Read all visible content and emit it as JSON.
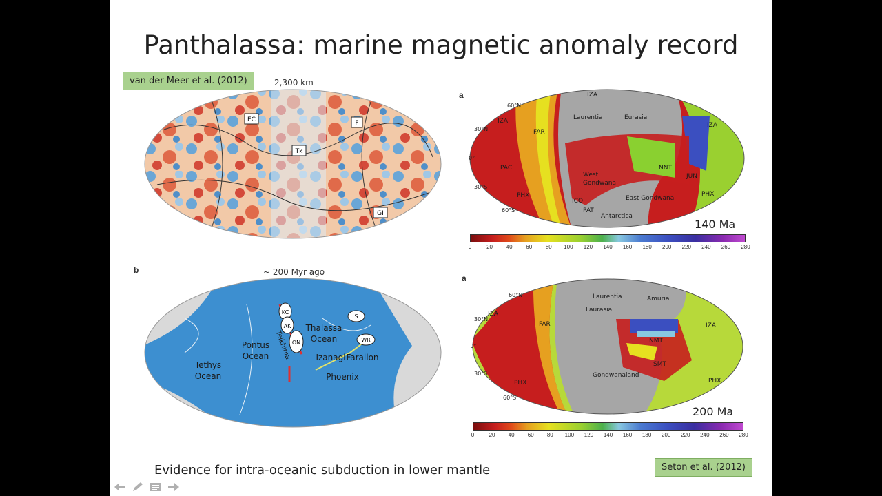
{
  "slide": {
    "title": "Panthalassa: marine magnetic anomaly record",
    "caption": "Evidence for intra-oceanic subduction in lower mantle",
    "citation_left": "van der Meer et al. (2012)",
    "citation_right": "Seton et al. (2012)"
  },
  "tomo_map": {
    "scale_label": "2,300 km",
    "boxes": [
      "EC",
      "F",
      "Tk",
      "GI"
    ]
  },
  "recon_map": {
    "panel_letter": "b",
    "time_label": "~ 200 Myr ago",
    "oceans": [
      "Tethys",
      "Ocean",
      "Pontus",
      "Ocean",
      "Thalassa",
      "Ocean",
      "Izanagi",
      "Farallon",
      "Phoenix",
      "Telkhinia"
    ],
    "ovals": [
      "KC",
      "AK",
      "ON",
      "S",
      "WR"
    ]
  },
  "age_map_140": {
    "panel_letter": "a",
    "age": "140 Ma",
    "lat_labels": [
      "60°N",
      "30°N",
      "0°",
      "30°S",
      "60°S"
    ],
    "plates": [
      "IZA",
      "FAR",
      "Laurentia",
      "Eurasia",
      "IZA",
      "PAC",
      "NNT",
      "West",
      "Gondwana",
      "JUN",
      "PHX",
      "East Gondwana",
      "PHX",
      "PAT",
      "Antarctica",
      "ICO",
      "IZA"
    ]
  },
  "age_map_200": {
    "panel_letter": "a",
    "age": "200 Ma",
    "lat_labels": [
      "60°N",
      "30°N",
      "0°",
      "30°S",
      "60°S"
    ],
    "plates": [
      "IZA",
      "FAR",
      "Laurentia",
      "Amuria",
      "Laurasia",
      "IZA",
      "NMT",
      "SMT",
      "Gondwanaland",
      "PHX",
      "PHX"
    ]
  },
  "scale": {
    "ticks": [
      "0",
      "20",
      "40",
      "60",
      "80",
      "100",
      "120",
      "140",
      "160",
      "180",
      "200",
      "220",
      "240",
      "260",
      "280"
    ]
  },
  "navigation": {
    "icons": [
      "arrow-left-icon",
      "pen-icon",
      "menu-icon",
      "arrow-right-icon"
    ]
  },
  "colors": {
    "ocean_blue": "#3d8fd0",
    "citation_green": "#a9d18e",
    "land_grey": "#a6a6a6"
  }
}
